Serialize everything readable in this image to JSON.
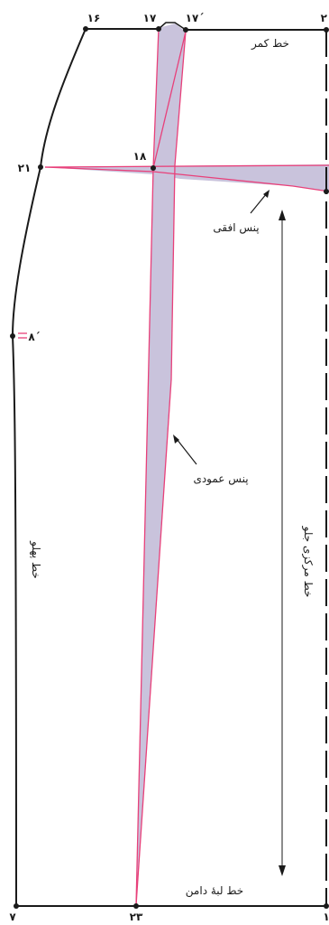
{
  "diagram": {
    "points": {
      "p16": "۱۶",
      "p17": "۱۷",
      "p17_prime": "۱۷´",
      "p2": "۲",
      "p18": "۱۸",
      "p21": "۲۱",
      "p8_prime": "۸´",
      "p7": "۷",
      "p23": "۲۳",
      "p1": "۱"
    },
    "labels": {
      "waist_line": "خط کمر",
      "horizontal_dart": "پنس افقی",
      "vertical_dart": "پنس عمودی",
      "side_line": "خط پهلو",
      "center_front_line": "خط مرکزی جلو",
      "hem_line": "خط لبه‌ٔ دامن"
    },
    "colors": {
      "outline": "#1a1a1a",
      "dart_stroke": "#e8407a",
      "dart_fill": "#c9c3dc"
    }
  }
}
